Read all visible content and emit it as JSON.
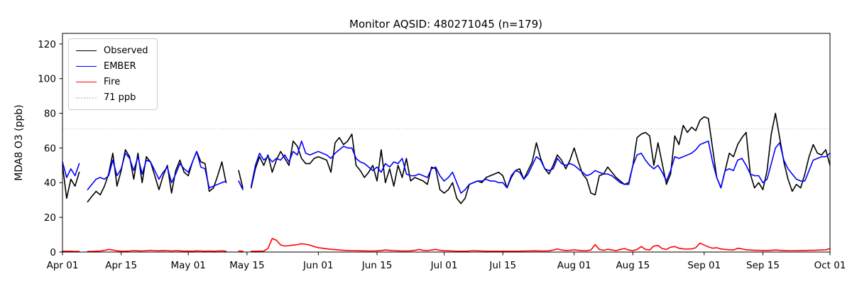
{
  "title": "Monitor AQSID: 480271045 (n=179)",
  "ylabel": "MDA8 O3 (ppb)",
  "legend": {
    "items": [
      {
        "label": "Observed",
        "color": "#000000",
        "style": "solid"
      },
      {
        "label": "EMBER",
        "color": "#0000ff",
        "style": "solid"
      },
      {
        "label": "Fire",
        "color": "#ff0000",
        "style": "solid"
      },
      {
        "label": "71 ppb",
        "color": "#d3d3d3",
        "style": "dotted"
      }
    ]
  },
  "chart_data": {
    "type": "line",
    "title": "Monitor AQSID: 480271045 (n=179)",
    "xlabel": "",
    "ylabel": "MDA8 O3 (ppb)",
    "x_start_date": "Apr 01",
    "x_end_date": "Oct 01",
    "x_range_days": 183,
    "x_tick_labels": [
      "Apr 01",
      "Apr 15",
      "May 01",
      "May 15",
      "Jun 01",
      "Jun 15",
      "Jul 01",
      "Jul 15",
      "Aug 01",
      "Aug 15",
      "Sep 01",
      "Sep 15",
      "Oct 01"
    ],
    "x_tick_days": [
      0,
      14,
      30,
      44,
      61,
      75,
      91,
      105,
      122,
      136,
      153,
      167,
      183
    ],
    "y_ticks": [
      0,
      20,
      40,
      60,
      80,
      100,
      120
    ],
    "ylim": [
      0,
      126
    ],
    "grid": false,
    "legend_position": "upper-left",
    "threshold": {
      "label": "71 ppb",
      "value": 71,
      "color": "#d3d3d3",
      "style": "dotted"
    },
    "series": [
      {
        "name": "Observed",
        "color": "#000000",
        "values": [
          50,
          31,
          42,
          38,
          46,
          null,
          29,
          32,
          35,
          33,
          38,
          45,
          57,
          38,
          47,
          59,
          55,
          42,
          57,
          40,
          55,
          52,
          44,
          36,
          44,
          50,
          34,
          47,
          53,
          46,
          44,
          52,
          58,
          52,
          51,
          35,
          37,
          44,
          52,
          40,
          null,
          null,
          47,
          37,
          null,
          37,
          48,
          55,
          50,
          56,
          46,
          53,
          58,
          54,
          50,
          64,
          61,
          54,
          51,
          51,
          54,
          55,
          54,
          53,
          46,
          63,
          66,
          62,
          64,
          68,
          50,
          47,
          43,
          46,
          50,
          41,
          59,
          40,
          48,
          38,
          50,
          43,
          54,
          41,
          43,
          42,
          41,
          39,
          49,
          48,
          36,
          34,
          36,
          40,
          31,
          28,
          31,
          39,
          40,
          41,
          40,
          43,
          44,
          45,
          46,
          44,
          37,
          43,
          47,
          48,
          42,
          47,
          52,
          63,
          54,
          48,
          45,
          50,
          56,
          53,
          48,
          53,
          60,
          52,
          45,
          42,
          34,
          33,
          44,
          45,
          49,
          46,
          43,
          41,
          39,
          40,
          50,
          66,
          68,
          69,
          67,
          50,
          63,
          51,
          39,
          45,
          67,
          62,
          73,
          69,
          72,
          70,
          76,
          78,
          77,
          60,
          43,
          37,
          47,
          57,
          55,
          62,
          66,
          69,
          45,
          37,
          40,
          36,
          47,
          68,
          80,
          66,
          52,
          42,
          35,
          39,
          37,
          45,
          55,
          62,
          57,
          56,
          59,
          50
        ]
      },
      {
        "name": "EMBER",
        "color": "#0000ff",
        "values": [
          52,
          43,
          48,
          44,
          51,
          null,
          36,
          39,
          42,
          43,
          42,
          44,
          53,
          44,
          48,
          57,
          54,
          47,
          55,
          45,
          53,
          52,
          47,
          42,
          46,
          49,
          40,
          45,
          51,
          48,
          46,
          52,
          58,
          49,
          48,
          37,
          38,
          39,
          40,
          41,
          null,
          null,
          41,
          36,
          null,
          38,
          50,
          57,
          53,
          55,
          52,
          54,
          53,
          56,
          52,
          58,
          56,
          64,
          57,
          56,
          57,
          58,
          57,
          56,
          54,
          57,
          59,
          61,
          60,
          60,
          54,
          52,
          51,
          49,
          47,
          49,
          46,
          51,
          49,
          52,
          51,
          54,
          45,
          44,
          44,
          45,
          44,
          43,
          48,
          49,
          44,
          41,
          43,
          46,
          40,
          34,
          36,
          39,
          40,
          41,
          41,
          42,
          41,
          41,
          40,
          40,
          37,
          44,
          47,
          46,
          42,
          45,
          50,
          55,
          53,
          48,
          47,
          48,
          54,
          51,
          50,
          51,
          50,
          48,
          46,
          44,
          45,
          47,
          46,
          45,
          45,
          44,
          42,
          40,
          39,
          39,
          50,
          56,
          57,
          53,
          50,
          48,
          50,
          46,
          41,
          47,
          55,
          54,
          55,
          56,
          57,
          59,
          62,
          63,
          64,
          52,
          43,
          37,
          47,
          48,
          47,
          53,
          54,
          50,
          45,
          44,
          44,
          40,
          42,
          51,
          60,
          63,
          53,
          48,
          45,
          42,
          41,
          41,
          47,
          53,
          54,
          55,
          55,
          57
        ]
      },
      {
        "name": "Fire",
        "color": "#ff0000",
        "values": [
          0.5,
          0.5,
          0.5,
          0.4,
          0.4,
          null,
          0.4,
          0.4,
          0.5,
          0.6,
          1.0,
          1.5,
          1.2,
          0.7,
          0.5,
          0.5,
          0.6,
          0.8,
          0.7,
          0.6,
          0.8,
          1.0,
          0.8,
          0.7,
          0.9,
          0.8,
          0.6,
          0.8,
          0.7,
          0.5,
          0.6,
          0.5,
          0.7,
          0.6,
          0.5,
          0.6,
          0.5,
          0.6,
          0.7,
          0.5,
          null,
          null,
          0.6,
          0.5,
          null,
          0.5,
          0.5,
          0.5,
          0.6,
          2.0,
          7.8,
          6.8,
          4.1,
          3.5,
          3.7,
          4.0,
          4.3,
          4.8,
          4.5,
          4.0,
          3.2,
          2.5,
          2.2,
          1.9,
          1.6,
          1.4,
          1.2,
          1.0,
          0.9,
          0.8,
          0.8,
          0.7,
          0.7,
          0.6,
          0.6,
          0.7,
          0.9,
          1.2,
          1.0,
          0.8,
          0.7,
          0.6,
          0.6,
          0.7,
          1.0,
          1.5,
          1.0,
          0.8,
          1.2,
          1.5,
          1.0,
          0.8,
          0.7,
          0.6,
          0.5,
          0.5,
          0.5,
          0.6,
          0.8,
          0.7,
          0.6,
          0.5,
          0.5,
          0.5,
          0.5,
          0.5,
          0.5,
          0.5,
          0.5,
          0.5,
          0.6,
          0.6,
          0.7,
          0.7,
          0.6,
          0.6,
          0.7,
          1.2,
          1.8,
          1.2,
          0.9,
          1.0,
          1.3,
          1.0,
          0.8,
          0.8,
          1.2,
          4.3,
          1.5,
          1.0,
          1.6,
          1.2,
          0.8,
          1.5,
          2.0,
          1.2,
          0.8,
          1.5,
          3.2,
          1.5,
          1.2,
          3.5,
          3.8,
          2.0,
          1.5,
          2.8,
          3.2,
          2.2,
          1.8,
          1.7,
          1.8,
          2.5,
          5.2,
          4.0,
          3.0,
          2.2,
          2.5,
          1.8,
          1.5,
          1.3,
          1.2,
          2.2,
          1.8,
          1.3,
          1.2,
          1.0,
          1.0,
          0.9,
          0.9,
          1.0,
          1.2,
          1.0,
          0.9,
          0.8,
          0.8,
          0.8,
          0.9,
          0.9,
          1.0,
          1.0,
          1.1,
          1.2,
          1.3,
          2.0
        ]
      }
    ]
  }
}
